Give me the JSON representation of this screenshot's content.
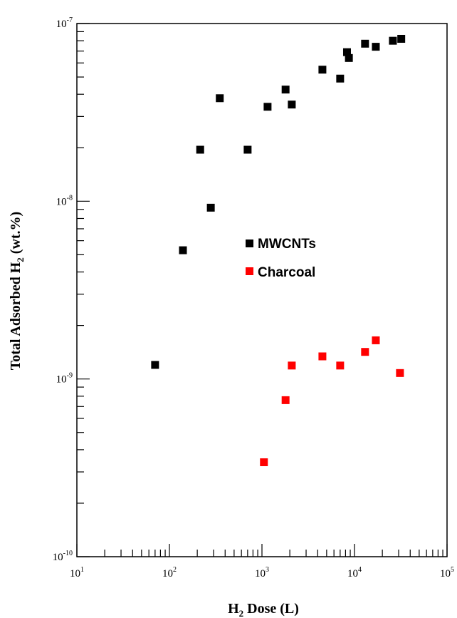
{
  "chart_data": {
    "type": "scatter",
    "xscale": "log",
    "yscale": "log",
    "xlim": [
      10,
      100000
    ],
    "ylim": [
      1e-10,
      1e-07
    ],
    "xlabel": {
      "prefix": "H",
      "sub": "2",
      "suffix": " Dose (L)"
    },
    "ylabel": {
      "prefix": "Total Adsorbed H",
      "sub": "2",
      "suffix": " (wt.%)"
    },
    "x_ticks": [
      {
        "value": 10,
        "base": "10",
        "exp": "1"
      },
      {
        "value": 100,
        "base": "10",
        "exp": "2"
      },
      {
        "value": 1000,
        "base": "10",
        "exp": "3"
      },
      {
        "value": 10000,
        "base": "10",
        "exp": "4"
      },
      {
        "value": 100000,
        "base": "10",
        "exp": "5"
      }
    ],
    "y_ticks": [
      {
        "value": 1e-10,
        "base": "10",
        "exp": "-10"
      },
      {
        "value": 1e-09,
        "base": "10",
        "exp": "-9"
      },
      {
        "value": 1e-08,
        "base": "10",
        "exp": "-8"
      },
      {
        "value": 1e-07,
        "base": "10",
        "exp": "-7"
      }
    ],
    "legend_position": "center-right",
    "series": [
      {
        "name": "MWCNTs",
        "color": "#000000",
        "marker": "square",
        "points": [
          [
            70,
            1.2e-09
          ],
          [
            140,
            5.3e-09
          ],
          [
            215,
            1.95e-08
          ],
          [
            280,
            9.2e-09
          ],
          [
            350,
            3.8e-08
          ],
          [
            700,
            1.95e-08
          ],
          [
            1150,
            3.4e-08
          ],
          [
            1800,
            4.25e-08
          ],
          [
            2100,
            3.5e-08
          ],
          [
            4500,
            5.5e-08
          ],
          [
            7000,
            4.9e-08
          ],
          [
            8300,
            6.9e-08
          ],
          [
            8700,
            6.4e-08
          ],
          [
            13000,
            7.7e-08
          ],
          [
            17000,
            7.4e-08
          ],
          [
            26000,
            8e-08
          ],
          [
            32000,
            8.2e-08
          ]
        ]
      },
      {
        "name": "Charcoal",
        "color": "#ff0000",
        "marker": "square",
        "points": [
          [
            1050,
            3.4e-10
          ],
          [
            1800,
            7.6e-10
          ],
          [
            2100,
            1.19e-09
          ],
          [
            4500,
            1.34e-09
          ],
          [
            7000,
            1.19e-09
          ],
          [
            13000,
            1.42e-09
          ],
          [
            17000,
            1.65e-09
          ],
          [
            31000,
            1.08e-09
          ]
        ]
      }
    ]
  }
}
